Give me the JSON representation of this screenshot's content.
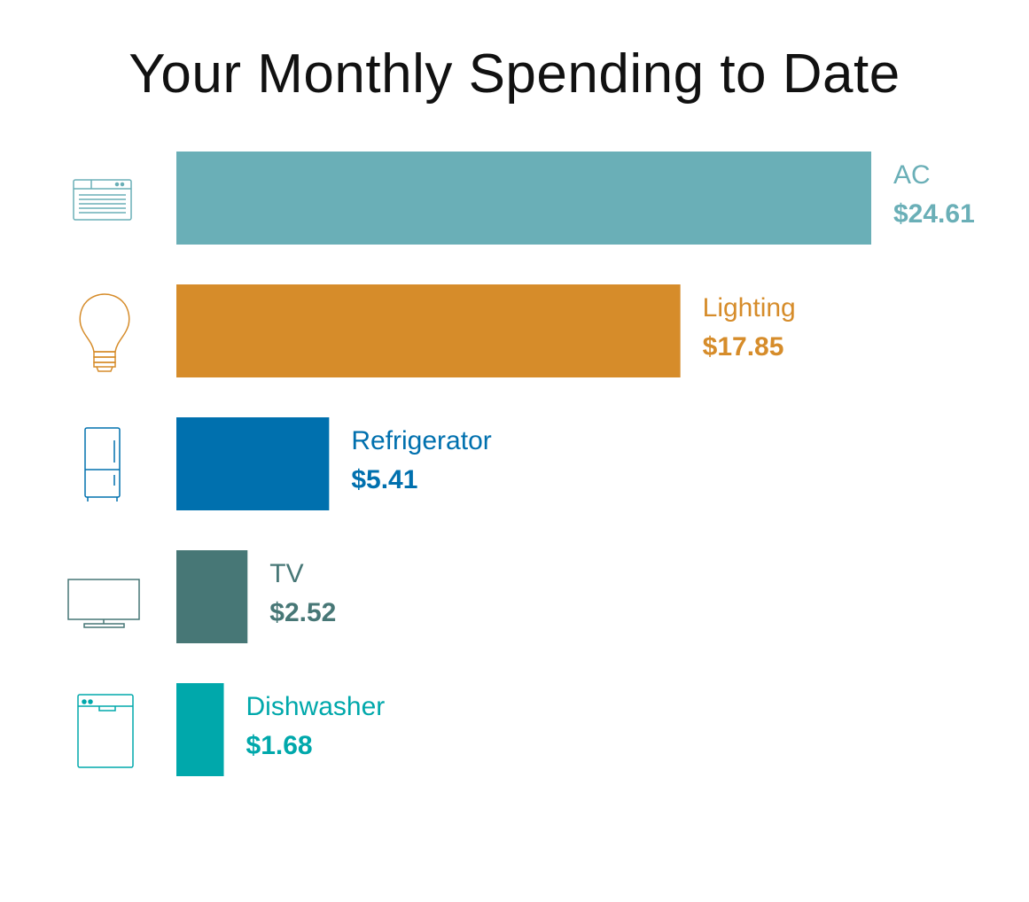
{
  "chart_data": {
    "type": "bar",
    "orientation": "horizontal",
    "title": "Your Monthly Spending to Date",
    "categories": [
      "AC",
      "Lighting",
      "Refrigerator",
      "TV",
      "Dishwasher"
    ],
    "values": [
      24.61,
      17.85,
      5.41,
      2.52,
      1.68
    ],
    "value_labels": [
      "$24.61",
      "$17.85",
      "$5.41",
      "$2.52",
      "$1.68"
    ],
    "colors": [
      "#6aafb7",
      "#d68c2a",
      "#0070ae",
      "#477776",
      "#00a8ab"
    ],
    "icons": [
      "air-conditioner-icon",
      "light-bulb-icon",
      "refrigerator-icon",
      "tv-icon",
      "dishwasher-icon"
    ],
    "xlim": [
      0,
      24.61
    ],
    "grid": false,
    "legend": "none"
  }
}
